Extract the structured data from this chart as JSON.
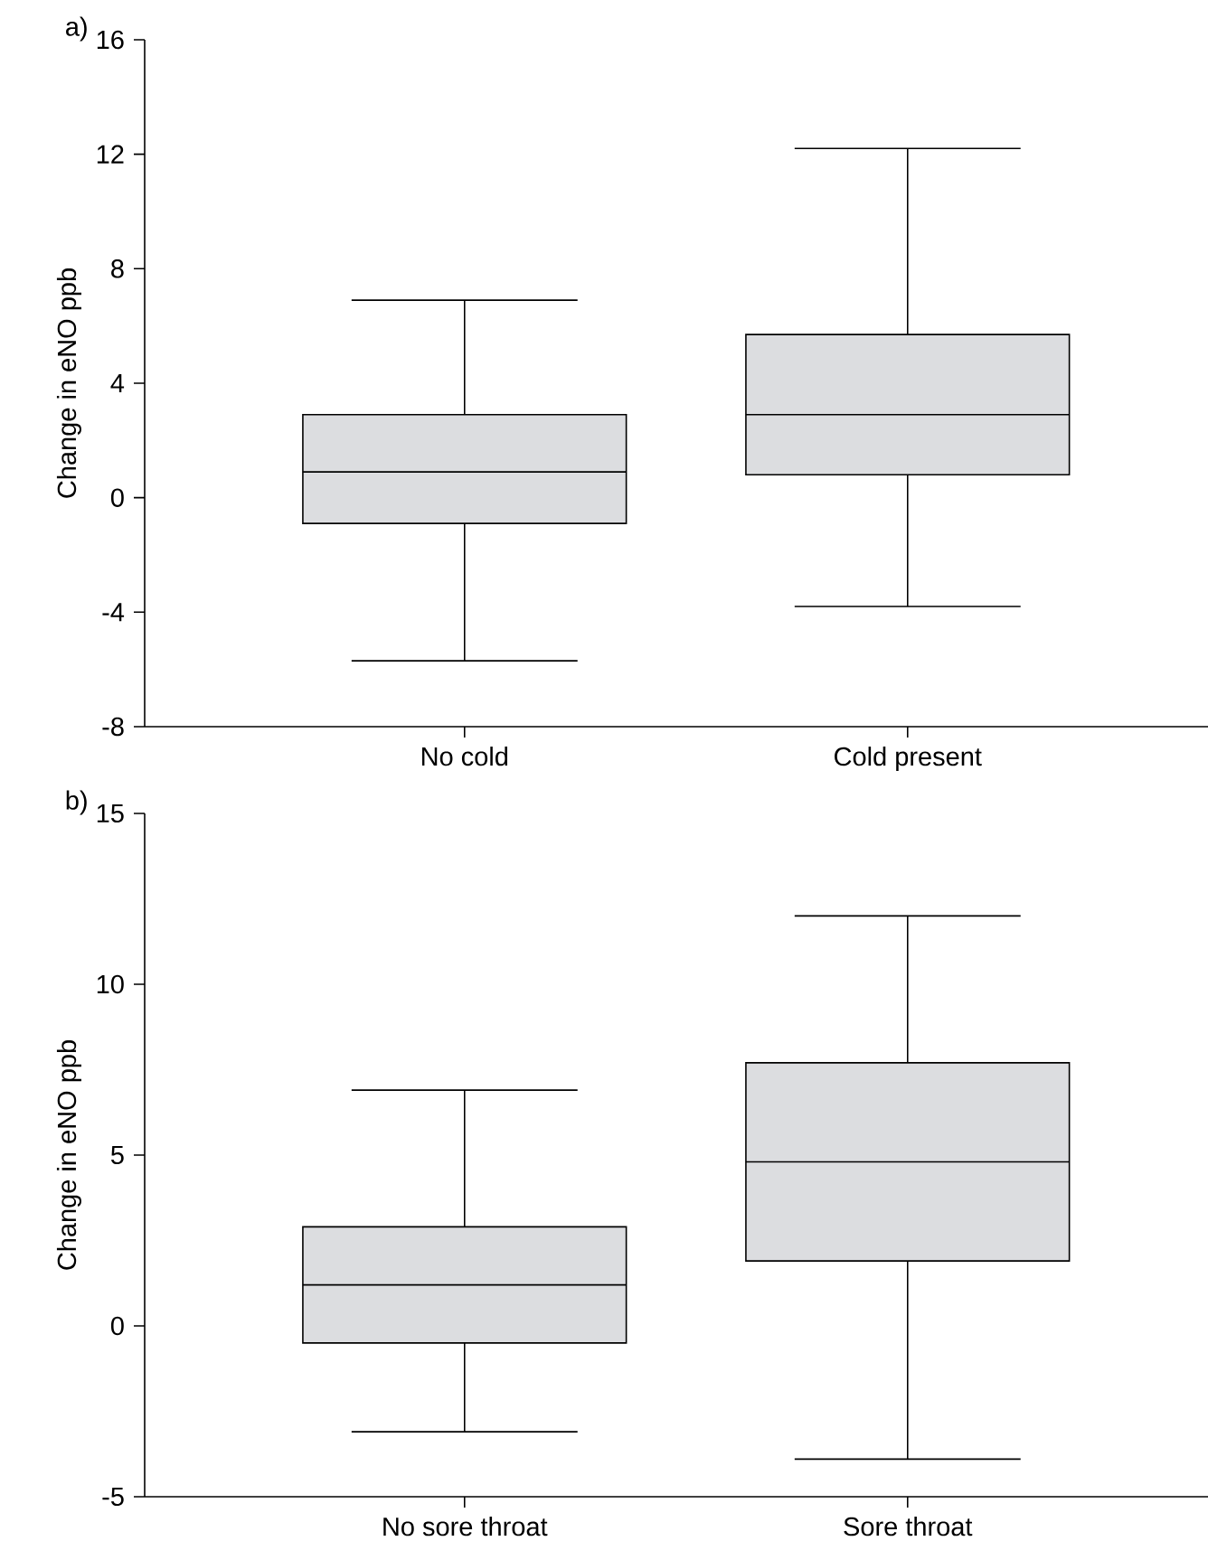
{
  "chart_data": [
    {
      "type": "box",
      "title": "a)",
      "ylabel": "Change in eNO ppb",
      "categories": [
        "No cold",
        "Cold present"
      ],
      "color": "#dcdde0",
      "boxes": [
        {
          "low": -5.7,
          "q1": -0.9,
          "median": 0.9,
          "q3": 2.9,
          "high": 6.9
        },
        {
          "low": -3.8,
          "q1": 0.8,
          "median": 2.9,
          "q3": 5.7,
          "high": 12.2
        }
      ],
      "ylim": [
        -8,
        16
      ],
      "yticks": [
        -8,
        -4,
        0,
        4,
        8,
        12,
        16
      ]
    },
    {
      "type": "box",
      "title": "b)",
      "ylabel": "Change in eNO ppb",
      "categories": [
        "No sore throat",
        "Sore throat"
      ],
      "color": "#dcdde0",
      "boxes": [
        {
          "low": -3.1,
          "q1": -0.5,
          "median": 1.2,
          "q3": 2.9,
          "high": 6.9
        },
        {
          "low": -3.9,
          "q1": 1.9,
          "median": 4.8,
          "q3": 7.7,
          "high": 12.0
        }
      ],
      "ylim": [
        -5,
        15
      ],
      "yticks": [
        -5,
        0,
        5,
        10,
        15
      ]
    }
  ]
}
